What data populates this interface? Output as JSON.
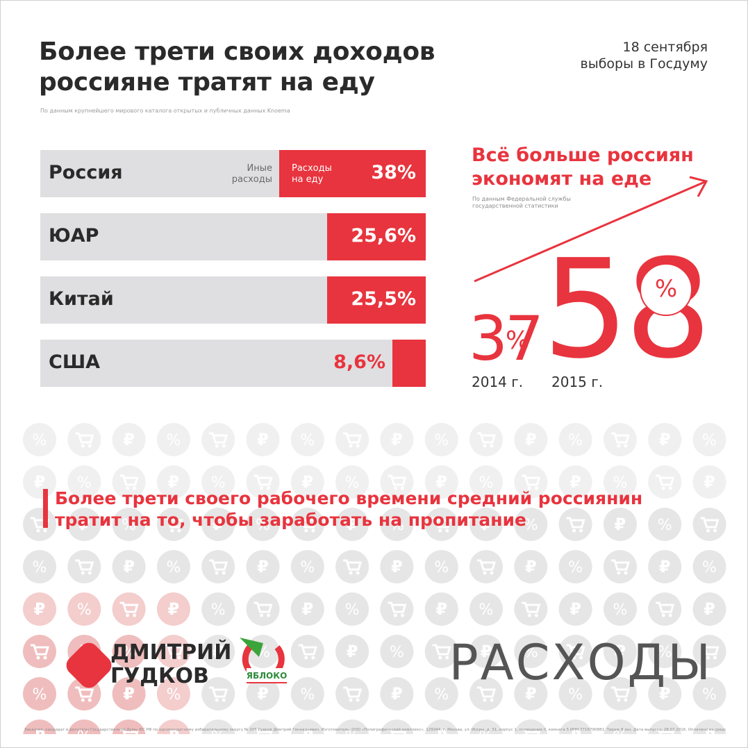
{
  "header": {
    "title_line1": "Более трети своих доходов",
    "title_line2": "россияне тратят на еду",
    "source": "По данным крупнейшего мирового каталога открытых и публичных данных Knoema",
    "date_line1": "18 сентября",
    "date_line2": "выборы в Госдуму"
  },
  "chart_data": {
    "type": "bar",
    "orientation": "horizontal",
    "title": "Более трети своих доходов россияне тратят на еду",
    "categories": [
      "Россия",
      "ЮАР",
      "Китай",
      "США"
    ],
    "values": [
      38,
      25.6,
      25.5,
      8.6
    ],
    "value_labels": [
      "38%",
      "25,6%",
      "25,5%",
      "8,6%"
    ],
    "unit": "%",
    "max": 100,
    "legend": {
      "other": [
        "Иные",
        "расходы"
      ],
      "food": [
        "Расходы",
        "на еду"
      ]
    },
    "colors": {
      "fill": "#e8343e",
      "track": "#dfdfe1"
    }
  },
  "trend": {
    "title_line1": "Всё больше россиян",
    "title_line2": "экономят на еде",
    "source_line1": "По данным Федеральной службы",
    "source_line2": "государственной статистики",
    "points": [
      {
        "year_label": "2014 г.",
        "value": "37",
        "percent": "%"
      },
      {
        "year_label": "2015 г.",
        "value": "58",
        "percent": "%"
      }
    ]
  },
  "statement": {
    "line1": "Более трети своего рабочего времени средний россиянин",
    "line2": "тратит на то, чтобы заработать на пропитание"
  },
  "branding": {
    "candidate_line1": "ДМИТРИЙ",
    "candidate_line2": "ГУДКОВ",
    "party": "ЯБЛОКО",
    "section": "РАСХОДЫ"
  },
  "background_icons": [
    "cart-icon",
    "ruble-icon",
    "percent-icon"
  ],
  "footer": "Заказчик: кандидат в депутаты Государственной Думы ФС РФ по одномандатному избирательному округу № 206 Гудков Дмитрий Геннадьевич. Изготовитель: ООО «Полиграфический комплекс», 129344, г. Москва, ул. Искры, д. 31, корпус 1, помещение II, комната 5 ИНН 7716790881. Тираж 8 экз. Дата выпуска: 28.07.2016. Оплачено из средств избирательного фонда заказчика.",
  "colors": {
    "accent": "#e8343e",
    "text": "#2a2a2a",
    "muted": "#9a9a9a"
  }
}
